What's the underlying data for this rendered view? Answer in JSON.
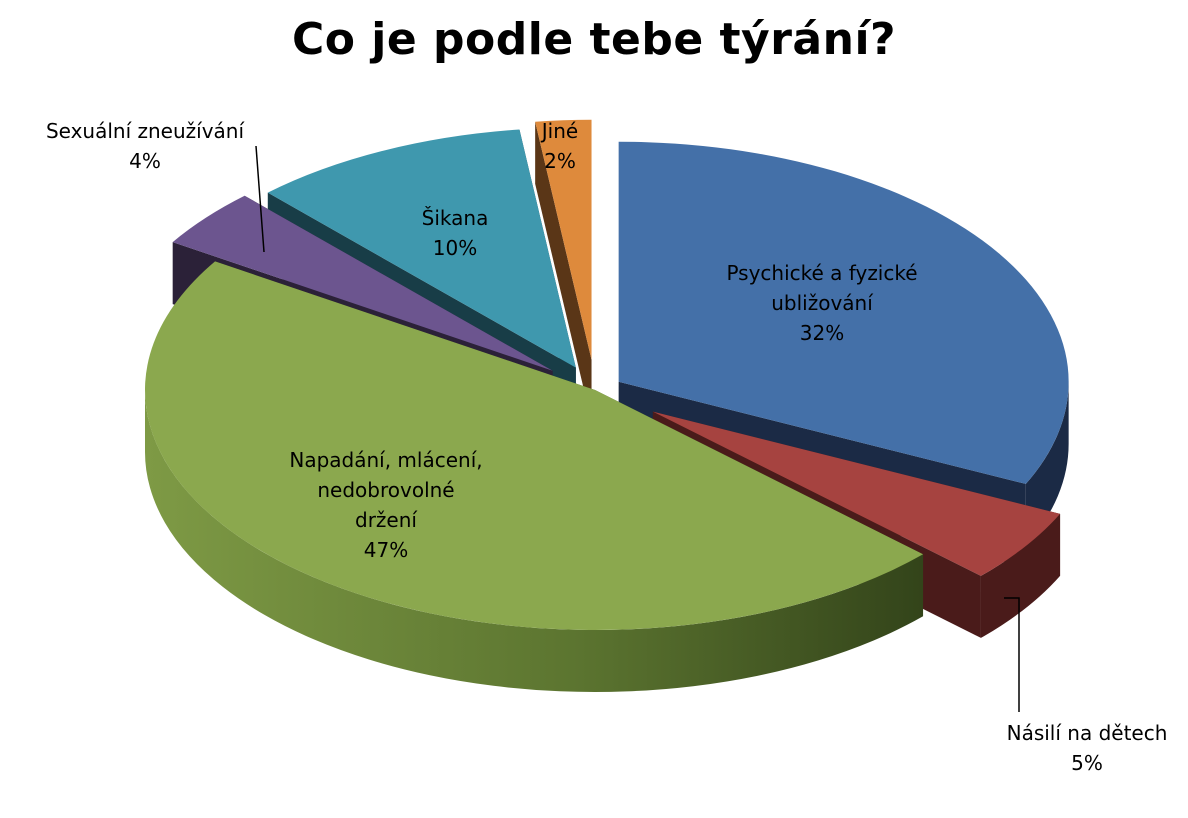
{
  "chart_data": {
    "type": "pie",
    "title": "Co je podle tebe týrání?",
    "slices": [
      {
        "label": [
          "Psychické a fyzické",
          "ubližování"
        ],
        "value": 32,
        "pct": "32%",
        "color": "#4470A8",
        "side": "#1B2A45",
        "topOpacity": 1
      },
      {
        "label": [
          "Násilí na dětech"
        ],
        "value": 5,
        "pct": "5%",
        "color": "#A64340",
        "side": "#4A1B1A",
        "topOpacity": 1
      },
      {
        "label": [
          "Napadání, mlácení,",
          "nedobrovolné",
          "držení"
        ],
        "value": 47,
        "pct": "47%",
        "color": "#8BA84E",
        "side": "#45571F",
        "topOpacity": 1
      },
      {
        "label": [
          "Sexuální zneužívání"
        ],
        "value": 4,
        "pct": "4%",
        "color": "#6C558F",
        "side": "#2B2138",
        "topOpacity": 1
      },
      {
        "label": [
          "Šikana"
        ],
        "value": 10,
        "pct": "10%",
        "color": "#3F98AE",
        "side": "#183D47",
        "topOpacity": 1
      },
      {
        "label": [
          "Jiné"
        ],
        "value": 2,
        "pct": "2%",
        "color": "#DE8A3C",
        "side": "#5A3617",
        "topOpacity": 1
      }
    ]
  }
}
